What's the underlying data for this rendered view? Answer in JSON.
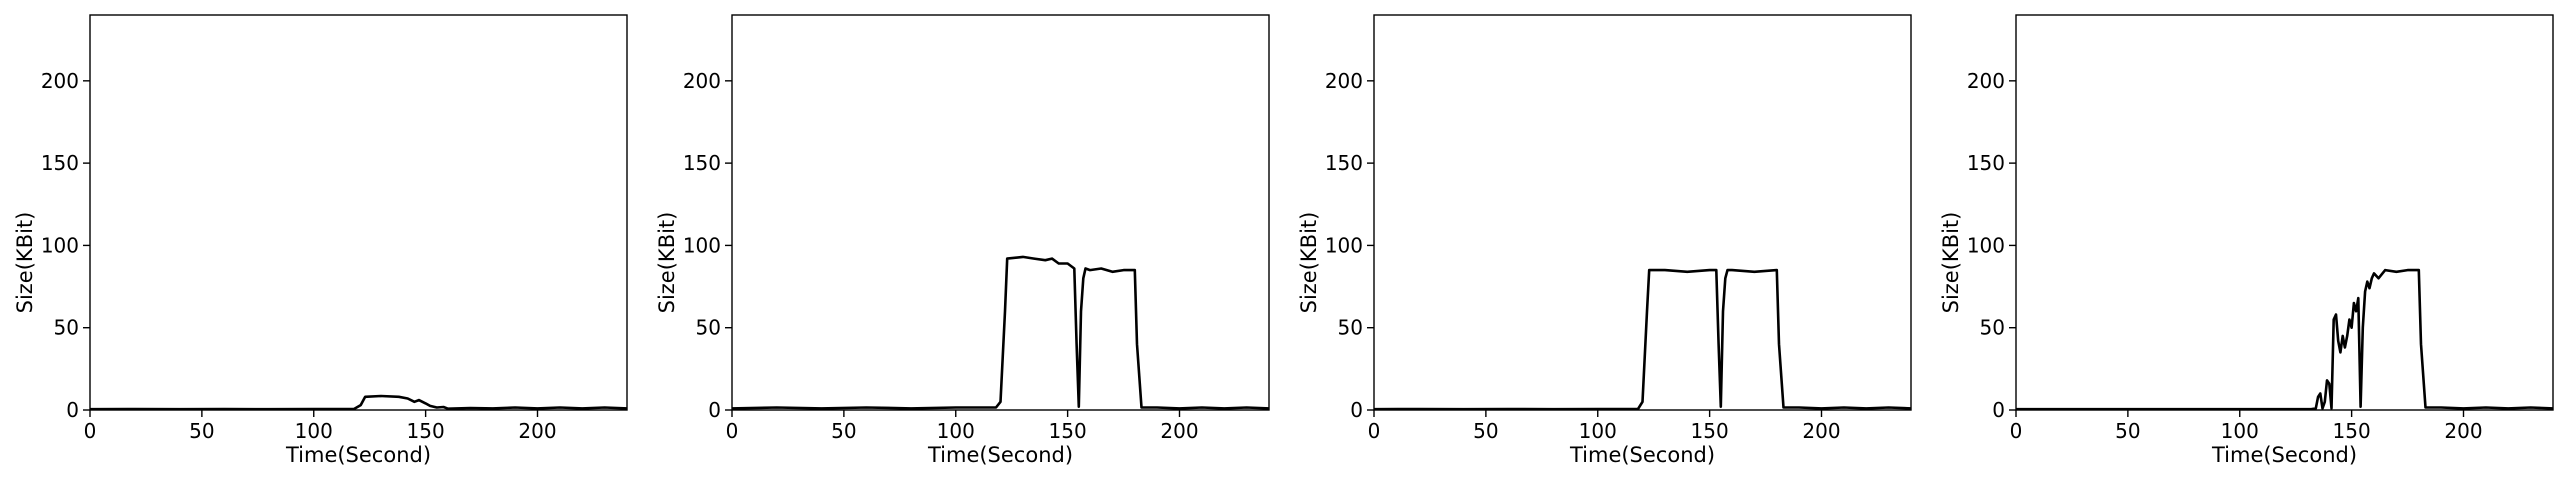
{
  "chart_data": [
    {
      "type": "line",
      "title": "",
      "xlabel": "Time(Second)",
      "ylabel": "Size(KBit)",
      "xlim": [
        0,
        240
      ],
      "ylim": [
        0,
        240
      ],
      "xticks": [
        0,
        50,
        100,
        150,
        200
      ],
      "yticks": [
        0,
        50,
        100,
        150,
        200
      ],
      "grid": false,
      "series": [
        {
          "x": [
            0,
            20,
            40,
            60,
            80,
            100,
            118,
            121,
            123,
            130,
            138,
            142,
            145,
            147,
            150,
            152,
            155,
            158,
            160,
            170,
            180,
            190,
            200,
            210,
            220,
            230,
            240
          ],
          "y": [
            0.5,
            0.6,
            0.5,
            0.6,
            0.5,
            0.6,
            0.6,
            3,
            8,
            8.5,
            8,
            7,
            5,
            6,
            4,
            2.5,
            1.5,
            1.8,
            0.8,
            1.2,
            1,
            1.5,
            1,
            1.5,
            1,
            1.5,
            1
          ]
        }
      ]
    },
    {
      "type": "line",
      "title": "",
      "xlabel": "Time(Second)",
      "ylabel": "Size(KBit)",
      "xlim": [
        0,
        240
      ],
      "ylim": [
        0,
        240
      ],
      "xticks": [
        0,
        50,
        100,
        150,
        200
      ],
      "yticks": [
        0,
        50,
        100,
        150,
        200
      ],
      "grid": false,
      "series": [
        {
          "x": [
            0,
            20,
            40,
            60,
            80,
            100,
            118,
            120,
            122,
            123,
            130,
            135,
            140,
            143,
            146,
            150,
            153,
            154,
            155,
            156,
            157,
            158,
            160,
            165,
            170,
            175,
            180,
            181,
            183,
            190,
            200,
            210,
            220,
            230,
            240
          ],
          "y": [
            1,
            1.5,
            1,
            1.5,
            1,
            1.5,
            1.5,
            5,
            60,
            92,
            93,
            92,
            91,
            92,
            89,
            89,
            86,
            40,
            2,
            60,
            80,
            86,
            85,
            86,
            84,
            85,
            85,
            40,
            1.5,
            1.5,
            1,
            1.5,
            1,
            1.5,
            1
          ]
        }
      ]
    },
    {
      "type": "line",
      "title": "",
      "xlabel": "Time(Second)",
      "ylabel": "Size(KBit)",
      "xlim": [
        0,
        240
      ],
      "ylim": [
        0,
        240
      ],
      "xticks": [
        0,
        50,
        100,
        150,
        200
      ],
      "yticks": [
        0,
        50,
        100,
        150,
        200
      ],
      "grid": false,
      "series": [
        {
          "x": [
            0,
            20,
            40,
            60,
            80,
            100,
            118,
            120,
            122,
            123,
            130,
            140,
            150,
            153,
            154,
            155,
            156,
            157,
            158,
            160,
            170,
            180,
            181,
            183,
            190,
            200,
            210,
            220,
            230,
            240
          ],
          "y": [
            0.5,
            0.6,
            0.5,
            0.6,
            0.5,
            0.6,
            0.6,
            5,
            60,
            85,
            85,
            84,
            85,
            85,
            40,
            2,
            60,
            80,
            85,
            85,
            84,
            85,
            40,
            1.5,
            1.5,
            1,
            1.5,
            1,
            1.5,
            1
          ]
        }
      ]
    },
    {
      "type": "line",
      "title": "",
      "xlabel": "Time(Second)",
      "ylabel": "Size(KBit)",
      "xlim": [
        0,
        240
      ],
      "ylim": [
        0,
        240
      ],
      "xticks": [
        0,
        50,
        100,
        150,
        200
      ],
      "yticks": [
        0,
        50,
        100,
        150,
        200
      ],
      "grid": false,
      "series": [
        {
          "x": [
            0,
            40,
            80,
            120,
            132,
            134,
            135,
            136,
            137,
            138,
            139,
            140,
            141,
            142,
            143,
            144,
            145,
            146,
            147,
            148,
            149,
            150,
            151,
            152,
            153,
            154,
            155,
            156,
            157,
            158,
            159,
            160,
            162,
            165,
            170,
            175,
            180,
            181,
            183,
            190,
            200,
            210,
            220,
            230,
            240
          ],
          "y": [
            0.5,
            0.5,
            0.5,
            0.5,
            0.5,
            1,
            8,
            10,
            1,
            5,
            18,
            16,
            1,
            55,
            58,
            42,
            35,
            45,
            38,
            45,
            55,
            50,
            65,
            60,
            68,
            2,
            50,
            72,
            78,
            74,
            80,
            83,
            80,
            85,
            84,
            85,
            85,
            40,
            1.5,
            1.5,
            1,
            1.5,
            1,
            1.5,
            1
          ]
        }
      ]
    }
  ]
}
